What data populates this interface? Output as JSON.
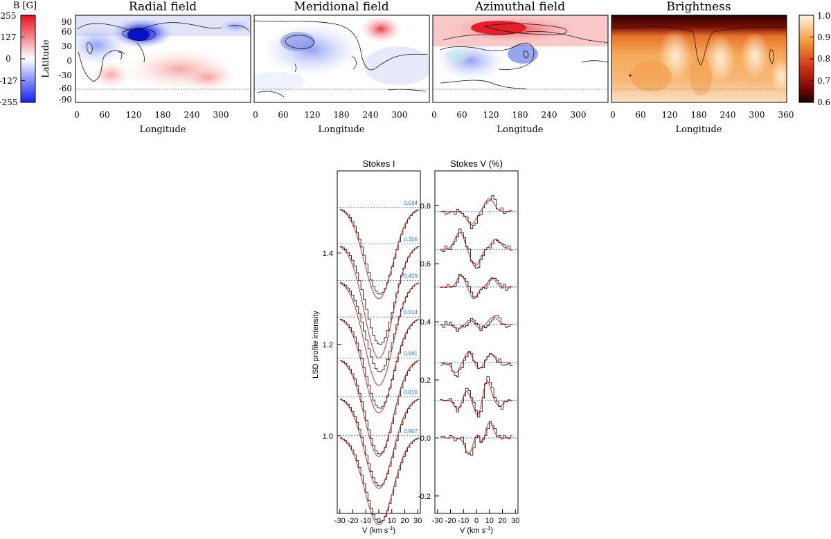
{
  "colorbar_left": {
    "title": "B [G]",
    "ticks": [
      "255",
      "127",
      "0",
      "-127",
      "-255"
    ]
  },
  "colorbar_right": {
    "ticks": [
      "1.0",
      "0.9",
      "0.8",
      "0.7",
      "0.6"
    ]
  },
  "latitude_label": "Latitude",
  "lat_ticks": [
    "90",
    "60",
    "30",
    "0",
    "-30",
    "-60",
    "-90"
  ],
  "longitude_label": "Longitude",
  "lon_ticks": [
    "0",
    "60",
    "120",
    "180",
    "240",
    "300"
  ],
  "lon_ticks_last": [
    "0",
    "60",
    "120",
    "180",
    "240",
    "300",
    "360"
  ],
  "maps": [
    {
      "title": "Radial field"
    },
    {
      "title": "Meridional field"
    },
    {
      "title": "Azimuthal field"
    },
    {
      "title": "Brightness"
    }
  ],
  "colors": {
    "positive": "#e8283a",
    "negative": "#2333e8",
    "dark": "#2a0000",
    "light": "#fff4e0",
    "model": "#e0281e",
    "phase": "#1a6fe0"
  },
  "chart_data": [
    {
      "type": "line",
      "title": "Stokes I",
      "xlabel": "V (km s⁻¹)",
      "ylabel": "LSD profile intensity",
      "xlim": [
        -32,
        32
      ],
      "ylim": [
        0.83,
        1.58
      ],
      "x_ticks": [
        "-30",
        "-20",
        "-10",
        "0",
        "10",
        "20",
        "30"
      ],
      "y_ticks": [
        1.0,
        1.2,
        1.4
      ],
      "y_tick_labels": [
        "1.0",
        "1.2",
        "1.4"
      ],
      "phases": [
        "0.034",
        "0.356",
        "0.429",
        "0.514",
        "0.641",
        "0.816",
        "0.907"
      ],
      "offsets": [
        1.5,
        1.42,
        1.34,
        1.26,
        1.17,
        1.085,
        1.0
      ],
      "depth_observed": [
        0.19,
        0.22,
        0.2,
        0.2,
        0.21,
        0.195,
        0.19
      ],
      "depth_model": [
        0.2,
        0.25,
        0.23,
        0.21,
        0.215,
        0.2,
        0.195
      ]
    },
    {
      "type": "line",
      "title": "Stokes V (%)",
      "xlabel": "V (km s⁻¹)",
      "xlim": [
        -32,
        32
      ],
      "ylim": [
        -0.26,
        0.92
      ],
      "x_ticks": [
        "-30",
        "-20",
        "-10",
        "0",
        "10",
        "20",
        "30"
      ],
      "y_ticks": [
        -0.2,
        0.0,
        0.2,
        0.4,
        0.6,
        0.8
      ],
      "y_tick_labels": [
        "-0.2",
        "0.0",
        "0.2",
        "0.4",
        "0.6",
        "0.8"
      ],
      "offsets": [
        0.78,
        0.65,
        0.52,
        0.39,
        0.26,
        0.13,
        0.0
      ],
      "amplitude": [
        0.05,
        0.065,
        0.045,
        0.03,
        0.04,
        0.075,
        0.06
      ]
    }
  ]
}
